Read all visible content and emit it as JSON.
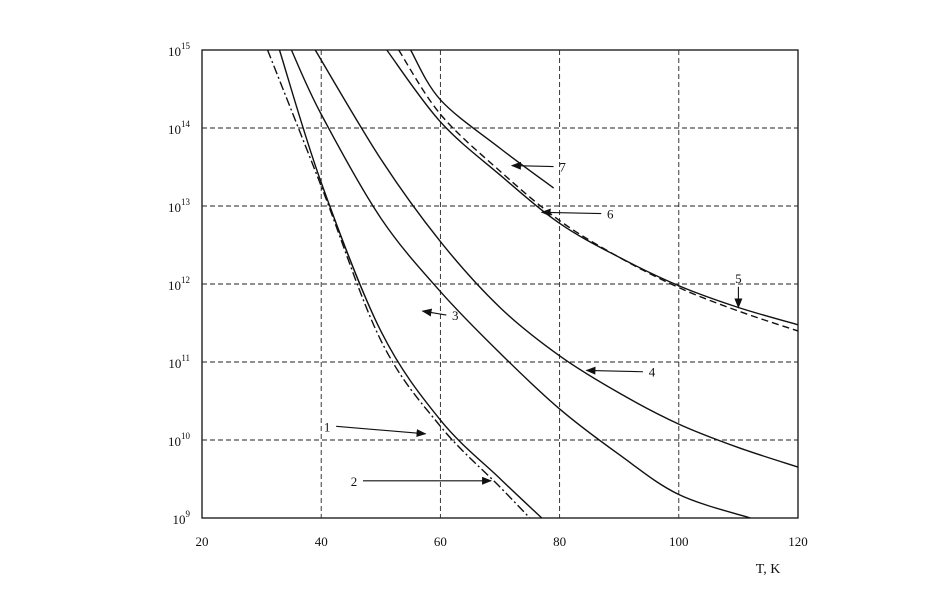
{
  "chart_data": {
    "type": "line",
    "title": "",
    "xlabel": "T, K",
    "ylabel": "",
    "xlim": [
      20,
      120
    ],
    "ylim": [
      1000000000.0,
      1000000000000000.0
    ],
    "yscale": "log",
    "grid": true,
    "x_ticks": [
      {
        "value": 20,
        "label": "20"
      },
      {
        "value": 40,
        "label": "40"
      },
      {
        "value": 60,
        "label": "60"
      },
      {
        "value": 80,
        "label": "80"
      },
      {
        "value": 100,
        "label": "100"
      },
      {
        "value": 120,
        "label": "120"
      }
    ],
    "y_ticks": [
      {
        "value": 1000000000.0,
        "base": "10",
        "exp": "9"
      },
      {
        "value": 10000000000.0,
        "base": "10",
        "exp": "10"
      },
      {
        "value": 100000000000.0,
        "base": "10",
        "exp": "11"
      },
      {
        "value": 1000000000000.0,
        "base": "10",
        "exp": "12"
      },
      {
        "value": 10000000000000.0,
        "base": "10",
        "exp": "13"
      },
      {
        "value": 100000000000000.0,
        "base": "10",
        "exp": "14"
      },
      {
        "value": 1000000000000000.0,
        "base": "10",
        "exp": "15"
      }
    ],
    "series": [
      {
        "label": "1",
        "style": "solid",
        "x": [
          33,
          40,
          50,
          60,
          70,
          77
        ],
        "y": [
          1000000000000000.0,
          20000000000000.0,
          250000000000.0,
          18000000000.0,
          3200000000.0,
          1000000000.0
        ]
      },
      {
        "label": "2",
        "style": "dashdot",
        "x": [
          31,
          40,
          50,
          60,
          70,
          75
        ],
        "y": [
          1000000000000000.0,
          18000000000000.0,
          190000000000.0,
          15000000000.0,
          2500000000.0,
          1000000000.0
        ]
      },
      {
        "label": "3",
        "style": "solid",
        "x": [
          35,
          40,
          50,
          60,
          70,
          80,
          90,
          100,
          112
        ],
        "y": [
          1000000000000000.0,
          150000000000000.0,
          7000000000000.0,
          800000000000.0,
          130000000000.0,
          25000000000.0,
          6500000000.0,
          2000000000.0,
          1000000000.0
        ]
      },
      {
        "label": "4",
        "style": "solid",
        "x": [
          39,
          50,
          60,
          70,
          80,
          90,
          100,
          110,
          120
        ],
        "y": [
          1000000000000000.0,
          40000000000000.0,
          3500000000000.0,
          500000000000.0,
          120000000000.0,
          40000000000.0,
          16000000000.0,
          8000000000.0,
          4500000000.0
        ]
      },
      {
        "label": "5",
        "style": "solid",
        "x": [
          51,
          60,
          70,
          80,
          90,
          100,
          110,
          120
        ],
        "y": [
          1000000000000000.0,
          120000000000000.0,
          25000000000000.0,
          6000000000000.0,
          2200000000000.0,
          950000000000.0,
          500000000000.0,
          300000000000.0
        ]
      },
      {
        "label": "6",
        "style": "dashed",
        "x": [
          53,
          60,
          70,
          80,
          90,
          100,
          110,
          120
        ],
        "y": [
          1000000000000000.0,
          150000000000000.0,
          28000000000000.0,
          6500000000000.0,
          2200000000000.0,
          900000000000.0,
          450000000000.0,
          250000000000.0
        ]
      },
      {
        "label": "7",
        "style": "solid",
        "x": [
          55,
          60,
          70,
          79
        ],
        "y": [
          1000000000000000.0,
          230000000000000.0,
          55000000000000.0,
          17000000000000.0
        ]
      }
    ],
    "annotations": [
      {
        "text": "1",
        "text_x": 41,
        "text_y": 15000000000.0,
        "arrow_x": 57.5,
        "arrow_y": 12000000000.0
      },
      {
        "text": "2",
        "text_x": 45.5,
        "text_y": 3000000000.0,
        "arrow_x": 68.5,
        "arrow_y": 3000000000.0
      },
      {
        "text": "3",
        "text_x": 62.5,
        "text_y": 400000000000.0,
        "arrow_x": 57,
        "arrow_y": 450000000000.0
      },
      {
        "text": "4",
        "text_x": 95.5,
        "text_y": 75000000000.0,
        "arrow_x": 84.5,
        "arrow_y": 78000000000.0
      },
      {
        "text": "5",
        "text_x": 110,
        "text_y": 1200000000000.0,
        "arrow_x": 110,
        "arrow_y": 500000000000.0
      },
      {
        "text": "6",
        "text_x": 88.5,
        "text_y": 8000000000000.0,
        "arrow_x": 77,
        "arrow_y": 8300000000000.0
      },
      {
        "text": "7",
        "text_x": 80.5,
        "text_y": 32000000000000.0,
        "arrow_x": 72,
        "arrow_y": 33000000000000.0
      }
    ]
  }
}
